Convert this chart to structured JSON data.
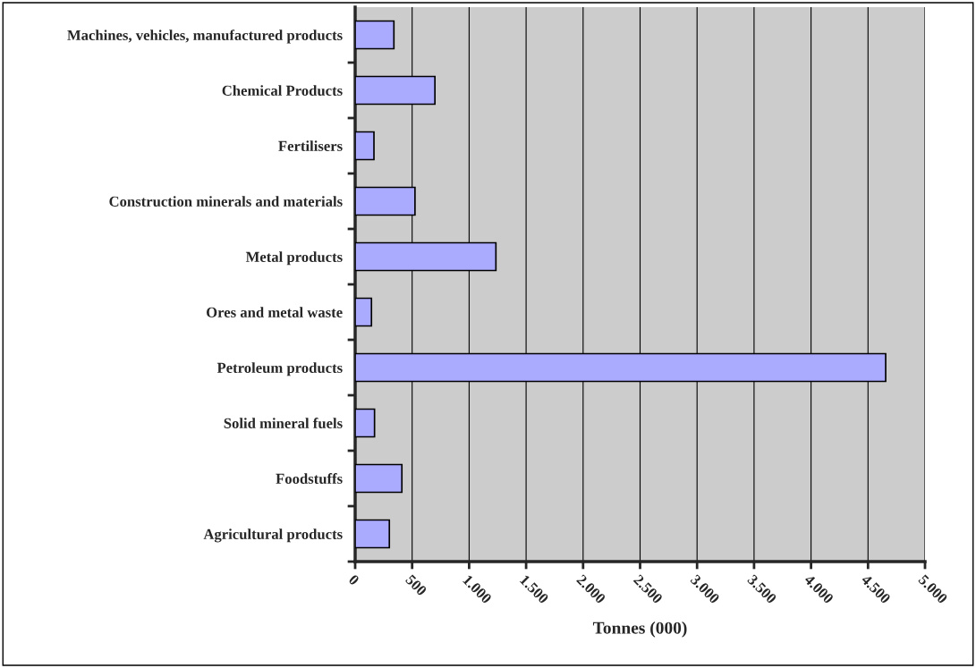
{
  "chart_data": {
    "type": "bar",
    "orientation": "horizontal",
    "xlabel": "Tonnes (000)",
    "categories": [
      "Machines, vehicles, manufactured products",
      "Chemical Products",
      "Fertilisers",
      "Construction minerals and materials",
      "Metal products",
      "Ores and metal waste",
      "Petroleum products",
      "Solid mineral fuels",
      "Foodstuffs",
      "Agricultural products"
    ],
    "values": [
      340,
      700,
      165,
      525,
      1235,
      143,
      4655,
      170,
      410,
      300
    ],
    "color": "#aaaaff",
    "xlim": [
      0,
      5000
    ],
    "xticks": [
      0,
      500,
      {
        "value": 1000,
        "label": "1.000"
      },
      {
        "value": 1500,
        "label": "1.500"
      },
      {
        "value": 2000,
        "label": "2.000"
      },
      {
        "value": 2500,
        "label": "2.500"
      },
      {
        "value": 3000,
        "label": "3.000"
      },
      {
        "value": 3500,
        "label": "3.500"
      },
      {
        "value": 4000,
        "label": "4.000"
      },
      {
        "value": 4500,
        "label": "4.500"
      },
      {
        "value": 5000,
        "label": "5.000"
      }
    ],
    "grid": "x",
    "legend": false
  }
}
